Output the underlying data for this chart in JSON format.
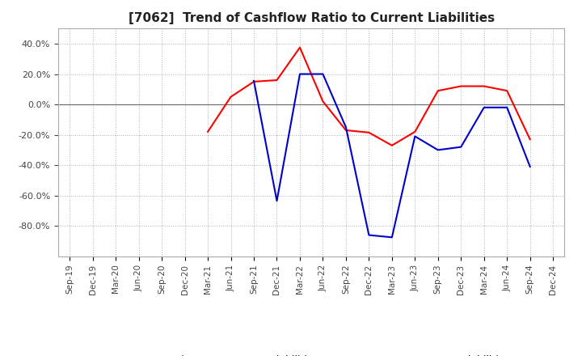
{
  "title": "[7062]  Trend of Cashflow Ratio to Current Liabilities",
  "x_labels": [
    "Sep-19",
    "Dec-19",
    "Mar-20",
    "Jun-20",
    "Sep-20",
    "Dec-20",
    "Mar-21",
    "Jun-21",
    "Sep-21",
    "Dec-21",
    "Mar-22",
    "Jun-22",
    "Sep-22",
    "Dec-22",
    "Mar-23",
    "Jun-23",
    "Sep-23",
    "Dec-23",
    "Mar-24",
    "Jun-24",
    "Sep-24",
    "Dec-24"
  ],
  "operating_cf": [
    null,
    null,
    null,
    null,
    null,
    null,
    -0.18,
    0.05,
    0.15,
    0.16,
    0.375,
    0.02,
    -0.17,
    -0.185,
    -0.27,
    -0.18,
    0.09,
    0.12,
    0.12,
    0.09,
    -0.23,
    null
  ],
  "free_cf": [
    null,
    null,
    null,
    null,
    null,
    null,
    null,
    null,
    0.155,
    -0.635,
    0.2,
    0.2,
    -0.15,
    -0.86,
    -0.875,
    -0.21,
    -0.3,
    -0.28,
    -0.02,
    -0.02,
    -0.41,
    null
  ],
  "ylim_low": -1.0,
  "ylim_high": 0.5,
  "yticks": [
    -0.8,
    -0.6,
    -0.4,
    -0.2,
    0.0,
    0.2,
    0.4
  ],
  "operating_color": "#ff0000",
  "free_color": "#0000cd",
  "background_color": "#ffffff",
  "grid_color": "#b0b0b0",
  "legend_operating": "Operating CF to Current Liabilities",
  "legend_free": "Free CF to Current Liabilities"
}
